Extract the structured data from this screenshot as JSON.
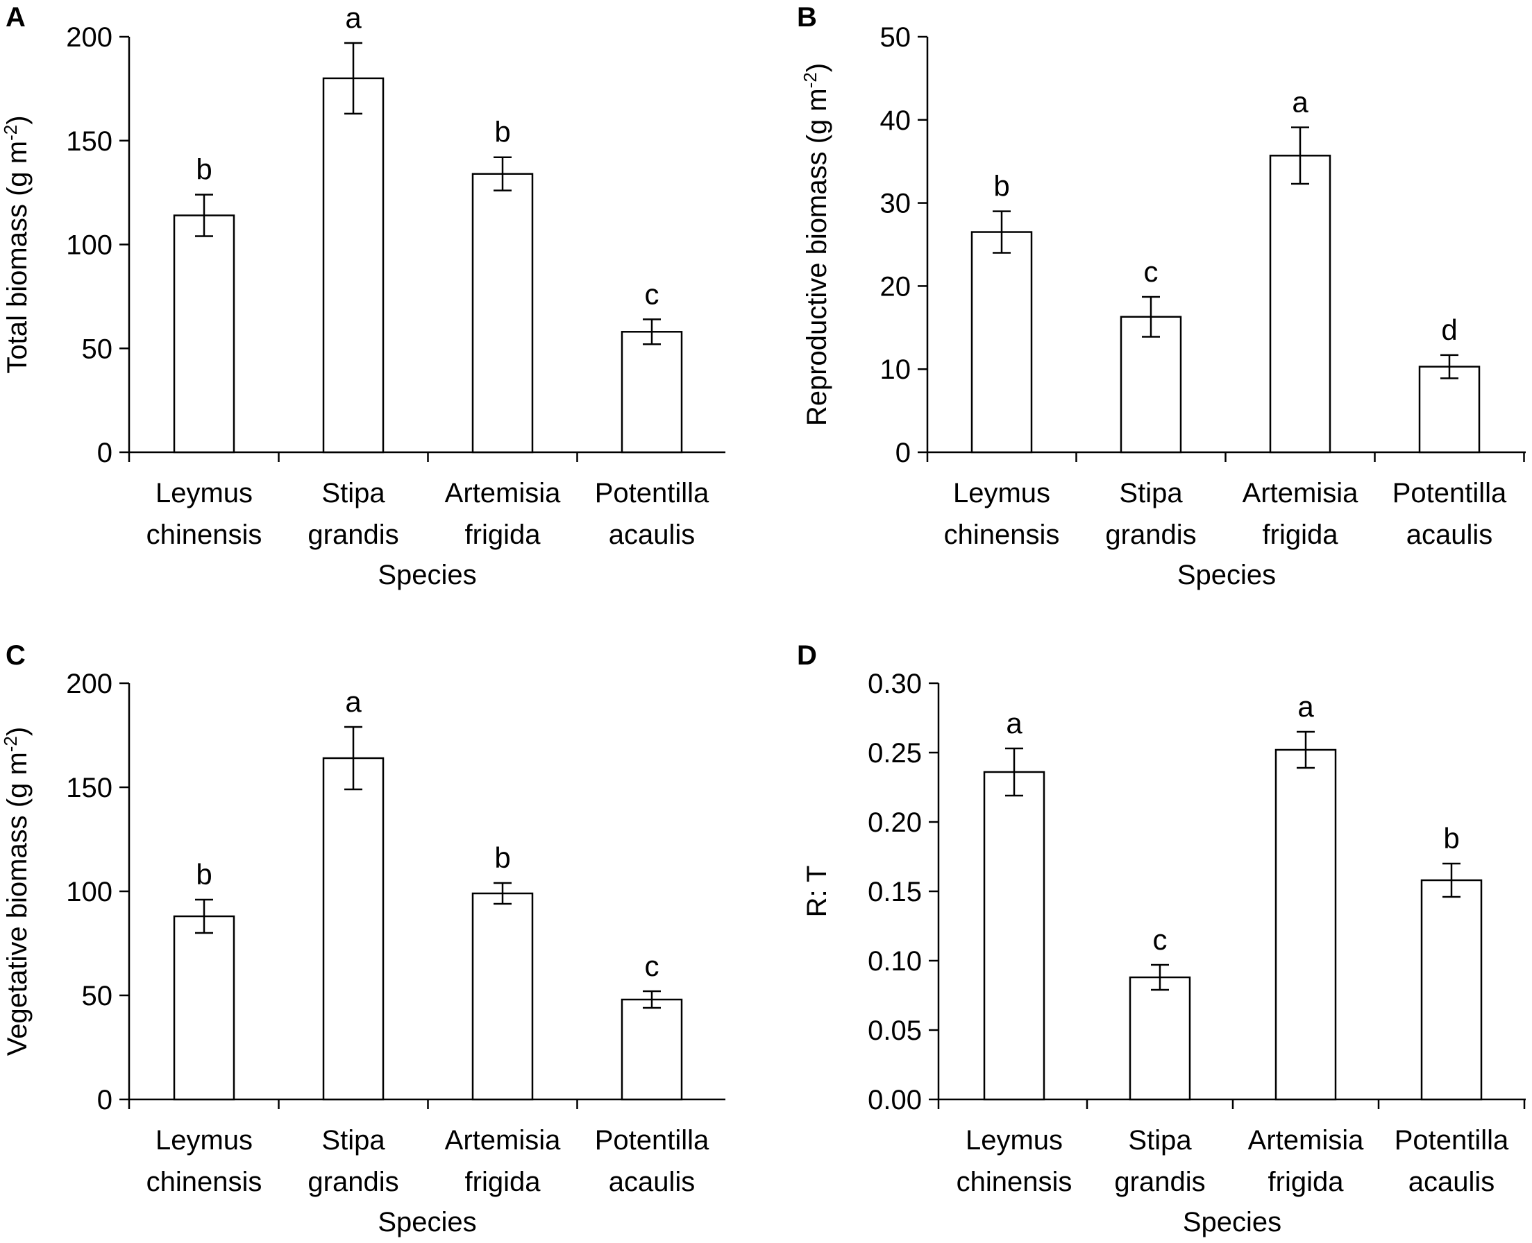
{
  "figure": {
    "panels": [
      "A",
      "B",
      "C",
      "D"
    ]
  },
  "chart_data": [
    {
      "panel": "A",
      "type": "bar",
      "title": "",
      "categories": [
        "Leymus chinensis",
        "Stipa grandis",
        "Artemisia frigida",
        "Potentilla acaulis"
      ],
      "category_lines": [
        [
          "Leymus",
          "chinensis"
        ],
        [
          "Stipa",
          "grandis"
        ],
        [
          "Artemisia",
          "frigida"
        ],
        [
          "Potentilla",
          "acaulis"
        ]
      ],
      "values": [
        114,
        180,
        134,
        58
      ],
      "errors": [
        10,
        17,
        8,
        6
      ],
      "significance_letters": [
        "b",
        "a",
        "b",
        "c"
      ],
      "xlabel": "Species",
      "ylabel": "Total biomass (g m",
      "ylabel_superscript": "-2",
      "ylabel_suffix": ")",
      "ylim": [
        0,
        200
      ],
      "yticks": [
        0,
        50,
        100,
        150,
        200
      ],
      "ytick_labels": [
        "0",
        "50",
        "100",
        "150",
        "200"
      ],
      "grid": false
    },
    {
      "panel": "B",
      "type": "bar",
      "title": "",
      "categories": [
        "Leymus chinensis",
        "Stipa grandis",
        "Artemisia frigida",
        "Potentilla acaulis"
      ],
      "category_lines": [
        [
          "Leymus",
          "chinensis"
        ],
        [
          "Stipa",
          "grandis"
        ],
        [
          "Artemisia",
          "frigida"
        ],
        [
          "Potentilla",
          "acaulis"
        ]
      ],
      "values": [
        26.5,
        16.3,
        35.7,
        10.3
      ],
      "errors": [
        2.5,
        2.4,
        3.4,
        1.4
      ],
      "significance_letters": [
        "b",
        "c",
        "a",
        "d"
      ],
      "xlabel": "Species",
      "ylabel": "Reproductive biomass (g m",
      "ylabel_superscript": "-2",
      "ylabel_suffix": ")",
      "ylim": [
        0,
        50
      ],
      "yticks": [
        0,
        10,
        20,
        30,
        40,
        50
      ],
      "ytick_labels": [
        "0",
        "10",
        "20",
        "30",
        "40",
        "50"
      ],
      "grid": false
    },
    {
      "panel": "C",
      "type": "bar",
      "title": "",
      "categories": [
        "Leymus chinensis",
        "Stipa grandis",
        "Artemisia frigida",
        "Potentilla acaulis"
      ],
      "category_lines": [
        [
          "Leymus",
          "chinensis"
        ],
        [
          "Stipa",
          "grandis"
        ],
        [
          "Artemisia",
          "frigida"
        ],
        [
          "Potentilla",
          "acaulis"
        ]
      ],
      "values": [
        88,
        164,
        99,
        48
      ],
      "errors": [
        8,
        15,
        5,
        4
      ],
      "significance_letters": [
        "b",
        "a",
        "b",
        "c"
      ],
      "xlabel": "Species",
      "ylabel": "Vegetative biomass (g m",
      "ylabel_superscript": "-2",
      "ylabel_suffix": ")",
      "ylim": [
        0,
        200
      ],
      "yticks": [
        0,
        50,
        100,
        150,
        200
      ],
      "ytick_labels": [
        "0",
        "50",
        "100",
        "150",
        "200"
      ],
      "grid": false
    },
    {
      "panel": "D",
      "type": "bar",
      "title": "",
      "categories": [
        "Leymus chinensis",
        "Stipa grandis",
        "Artemisia frigida",
        "Potentilla acaulis"
      ],
      "category_lines": [
        [
          "Leymus",
          "chinensis"
        ],
        [
          "Stipa",
          "grandis"
        ],
        [
          "Artemisia",
          "frigida"
        ],
        [
          "Potentilla",
          "acaulis"
        ]
      ],
      "values": [
        0.236,
        0.088,
        0.252,
        0.158
      ],
      "errors": [
        0.017,
        0.009,
        0.013,
        0.012
      ],
      "significance_letters": [
        "a",
        "c",
        "a",
        "b"
      ],
      "xlabel": "Species",
      "ylabel": "R: T",
      "ylabel_superscript": "",
      "ylabel_suffix": "",
      "ylim": [
        0,
        0.3
      ],
      "yticks": [
        0,
        0.05,
        0.1,
        0.15,
        0.2,
        0.25,
        0.3
      ],
      "ytick_labels": [
        "0.00",
        "0.05",
        "0.10",
        "0.15",
        "0.20",
        "0.25",
        "0.30"
      ],
      "grid": false
    }
  ]
}
